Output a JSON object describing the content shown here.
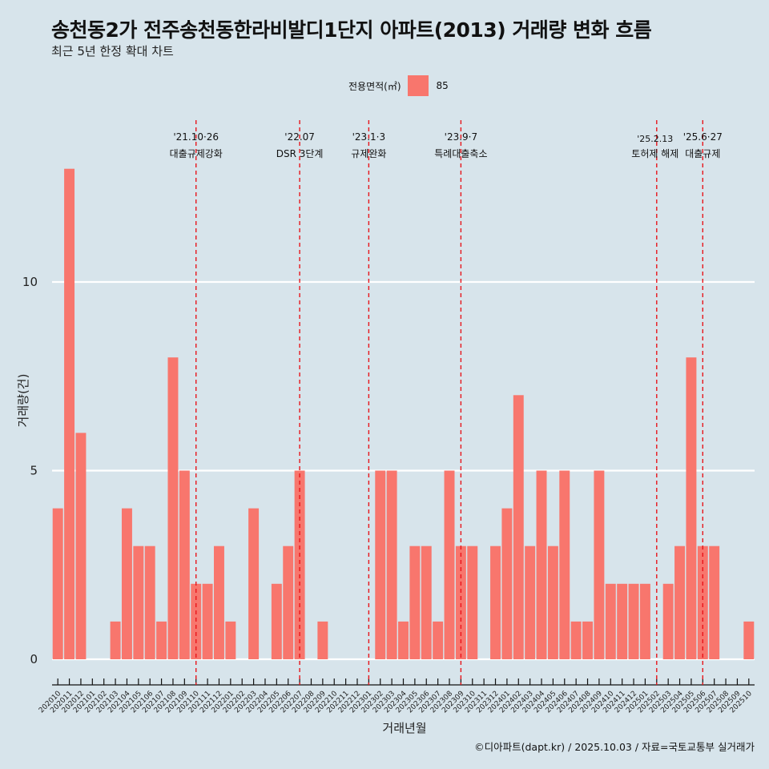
{
  "title": "송천동2가 전주송천동한라비발디1단지 아파트(2013) 거래량 변화 흐름",
  "subtitle": "최근 5년 한정 확대 차트",
  "caption": "©디아파트(dapt.kr) / 2025.10.03 / 자료=국토교통부 실거래가",
  "chart_data": {
    "type": "bar",
    "xlabel": "거래년월",
    "ylabel": "거래량(건)",
    "ylim": [
      0,
      13.8
    ],
    "yticks": [
      0,
      5,
      10
    ],
    "grid": true,
    "legend": {
      "title": "전용면적(㎡)",
      "entries": [
        {
          "label": "85",
          "color": "#f8766d"
        }
      ],
      "placement": "top"
    },
    "categories": [
      "202010",
      "202011",
      "202012",
      "202101",
      "202102",
      "202103",
      "202104",
      "202105",
      "202106",
      "202107",
      "202108",
      "202109",
      "202110",
      "202111",
      "202112",
      "202201",
      "202202",
      "202203",
      "202204",
      "202205",
      "202206",
      "202207",
      "202208",
      "202209",
      "202210",
      "202211",
      "202212",
      "202301",
      "202302",
      "202303",
      "202304",
      "202305",
      "202306",
      "202307",
      "202308",
      "202309",
      "202310",
      "202311",
      "202312",
      "202401",
      "202402",
      "202403",
      "202404",
      "202405",
      "202406",
      "202407",
      "202408",
      "202409",
      "202410",
      "202411",
      "202412",
      "202501",
      "202502",
      "202503",
      "202504",
      "202505",
      "202506",
      "202507",
      "202508",
      "202509",
      "202510"
    ],
    "series": [
      {
        "name": "85",
        "color": "#f8766d",
        "values": [
          4,
          13,
          6,
          0,
          0,
          1,
          4,
          3,
          3,
          1,
          8,
          5,
          2,
          2,
          3,
          1,
          0,
          4,
          0,
          2,
          3,
          5,
          0,
          1,
          0,
          0,
          0,
          0,
          5,
          5,
          1,
          3,
          3,
          1,
          5,
          3,
          3,
          0,
          3,
          4,
          7,
          3,
          5,
          3,
          5,
          1,
          1,
          5,
          2,
          2,
          2,
          2,
          0,
          2,
          3,
          8,
          3,
          3,
          0,
          0,
          1
        ]
      }
    ],
    "annotations": [
      {
        "x": "202110",
        "date": "'21.10·26",
        "label": "대출규제강화"
      },
      {
        "x": "202207",
        "date": "'22.07",
        "label": "DSR 3단계"
      },
      {
        "x": "202301",
        "date": "'23.1·3",
        "label": "규제완화"
      },
      {
        "x": "202309",
        "date": "'23.9·7",
        "label": "특례대출축소"
      },
      {
        "x": "202502",
        "date": "'25.2.13",
        "label": "토허제 해제"
      },
      {
        "x": "202506",
        "date": "'25.6·27",
        "label": "대출규제"
      }
    ]
  }
}
